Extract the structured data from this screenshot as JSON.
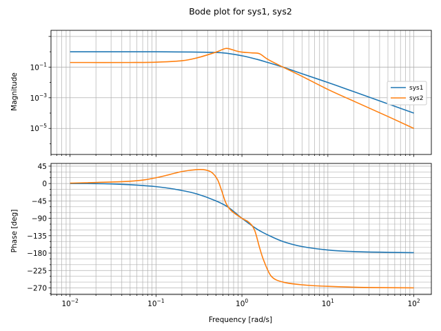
{
  "chart_data": {
    "title": "Bode plot for sys1, sys2",
    "xlabel": "Frequency [rad/s]",
    "x_scale": "log",
    "xlim": [
      0.006,
      160
    ],
    "x_ticks": [
      {
        "value": 0.01,
        "base": "10",
        "exp": "−2"
      },
      {
        "value": 0.1,
        "base": "10",
        "exp": "−1"
      },
      {
        "value": 1,
        "base": "10",
        "exp": "0"
      },
      {
        "value": 10,
        "base": "10",
        "exp": "1"
      },
      {
        "value": 100,
        "base": "10",
        "exp": "2"
      }
    ],
    "grid": true,
    "legend": {
      "placement": "right",
      "entries": [
        "sys1",
        "sys2"
      ]
    },
    "colors": {
      "sys1": "#1f77b4",
      "sys2": "#ff7f0e"
    },
    "magnitude": {
      "type": "line",
      "ylabel": "Magnitude",
      "y_scale": "log",
      "ylim": [
        2e-07,
        25
      ],
      "y_ticks": [
        {
          "value": 0.1,
          "base": "10",
          "exp": "−1"
        },
        {
          "value": 0.001,
          "base": "10",
          "exp": "−3"
        },
        {
          "value": 1e-05,
          "base": "10",
          "exp": "−5"
        }
      ],
      "series": [
        {
          "name": "sys1",
          "points": [
            [
              0.01,
              1.0
            ],
            [
              0.1,
              1.0
            ],
            [
              0.3,
              0.95
            ],
            [
              0.6,
              0.85
            ],
            [
              1,
              0.55
            ],
            [
              1.5,
              0.32
            ],
            [
              2,
              0.2
            ],
            [
              3,
              0.1
            ],
            [
              5,
              0.037
            ],
            [
              10,
              0.0099
            ],
            [
              20,
              0.0025
            ],
            [
              50,
              0.0004
            ],
            [
              100,
              0.0001
            ]
          ]
        },
        {
          "name": "sys2",
          "points": [
            [
              0.01,
              0.2
            ],
            [
              0.05,
              0.2
            ],
            [
              0.1,
              0.21
            ],
            [
              0.2,
              0.26
            ],
            [
              0.3,
              0.4
            ],
            [
              0.5,
              0.95
            ],
            [
              0.62,
              1.55
            ],
            [
              0.7,
              1.6
            ],
            [
              0.85,
              1.15
            ],
            [
              1.0,
              0.95
            ],
            [
              1.3,
              0.85
            ],
            [
              1.6,
              0.75
            ],
            [
              2.0,
              0.32
            ],
            [
              3.0,
              0.1
            ],
            [
              5,
              0.025
            ],
            [
              10,
              0.0035
            ],
            [
              20,
              0.0006
            ],
            [
              50,
              6e-05
            ],
            [
              100,
              1e-05
            ]
          ]
        }
      ]
    },
    "phase": {
      "type": "line",
      "ylabel": "Phase [deg]",
      "ylim": [
        -287,
        52
      ],
      "y_ticks": [
        45,
        0,
        -45,
        -90,
        -135,
        -180,
        -225,
        -270
      ],
      "y_tick_labels": [
        "45",
        "0",
        "−45",
        "−90",
        "−135",
        "−180",
        "−225",
        "−270"
      ],
      "series": [
        {
          "name": "sys1",
          "points": [
            [
              0.01,
              0
            ],
            [
              0.03,
              -1
            ],
            [
              0.1,
              -8
            ],
            [
              0.2,
              -18
            ],
            [
              0.3,
              -27
            ],
            [
              0.5,
              -45
            ],
            [
              0.7,
              -62
            ],
            [
              1,
              -90
            ],
            [
              1.5,
              -118
            ],
            [
              2,
              -133
            ],
            [
              3,
              -150
            ],
            [
              5,
              -163
            ],
            [
              10,
              -172
            ],
            [
              20,
              -176
            ],
            [
              50,
              -178
            ],
            [
              100,
              -179
            ]
          ]
        },
        {
          "name": "sys2",
          "points": [
            [
              0.01,
              1
            ],
            [
              0.05,
              6
            ],
            [
              0.1,
              15
            ],
            [
              0.2,
              31
            ],
            [
              0.3,
              36
            ],
            [
              0.38,
              35
            ],
            [
              0.45,
              28
            ],
            [
              0.52,
              10
            ],
            [
              0.58,
              -18
            ],
            [
              0.65,
              -50
            ],
            [
              0.75,
              -70
            ],
            [
              1.0,
              -90
            ],
            [
              1.2,
              -100
            ],
            [
              1.4,
              -120
            ],
            [
              1.6,
              -165
            ],
            [
              1.8,
              -200
            ],
            [
              2.2,
              -240
            ],
            [
              3,
              -255
            ],
            [
              5,
              -262
            ],
            [
              10,
              -266
            ],
            [
              30,
              -269
            ],
            [
              100,
              -270
            ]
          ]
        }
      ]
    }
  }
}
